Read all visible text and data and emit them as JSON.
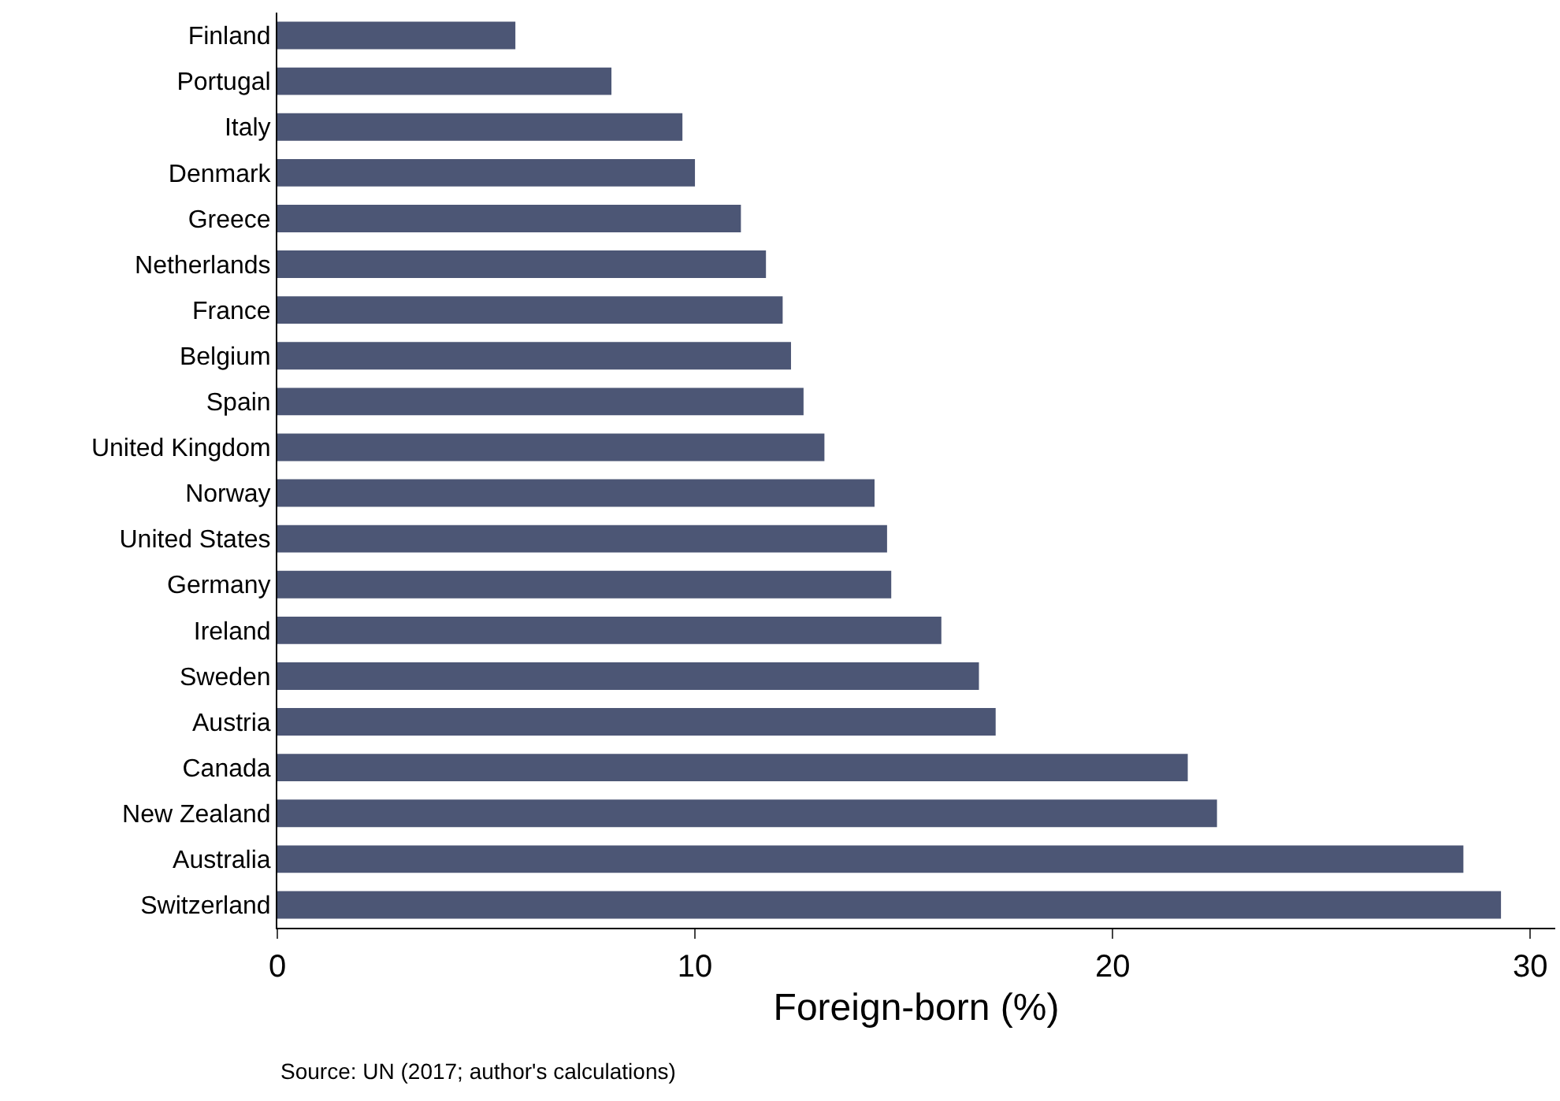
{
  "chart_data": {
    "type": "bar",
    "orientation": "horizontal",
    "xlabel": "Foreign-born (%)",
    "categories": [
      "Finland",
      "Portugal",
      "Italy",
      "Denmark",
      "Greece",
      "Netherlands",
      "France",
      "Belgium",
      "Spain",
      "United Kingdom",
      "Norway",
      "United States",
      "Germany",
      "Ireland",
      "Sweden",
      "Austria",
      "Canada",
      "New Zealand",
      "Australia",
      "Switzerland"
    ],
    "values": [
      5.7,
      8.0,
      9.7,
      10.0,
      11.1,
      11.7,
      12.1,
      12.3,
      12.6,
      13.1,
      14.3,
      14.6,
      14.7,
      15.9,
      16.8,
      17.2,
      21.8,
      22.5,
      28.4,
      29.3
    ],
    "color": "#4c5675",
    "xlim": [
      0,
      30.6
    ],
    "xticks": [
      0,
      10,
      20,
      30
    ],
    "grid": false,
    "annotations": [
      "Source: UN (2017; author's calculations)"
    ]
  }
}
